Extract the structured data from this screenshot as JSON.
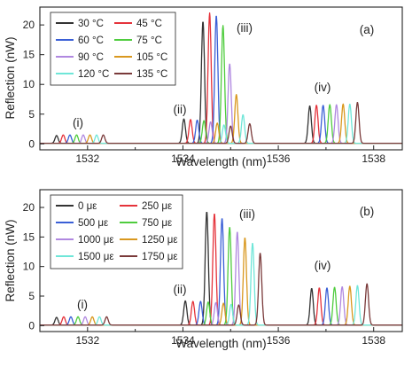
{
  "chart_data": [
    {
      "type": "line",
      "panel_label": "(a)",
      "xlabel": "Wavelength (nm)",
      "ylabel": "Reflection (nW)",
      "xlim": [
        1531,
        1538.6
      ],
      "ylim": [
        -1,
        23
      ],
      "xticks": [
        1532,
        1534,
        1536,
        1538
      ],
      "yticks": [
        0,
        5,
        10,
        15,
        20
      ],
      "grid": false,
      "legend_position": "top-left",
      "annotations": [
        "(i)",
        "(ii)",
        "(iii)",
        "(iv)"
      ],
      "series": [
        {
          "name": "30 °C",
          "color": "#333333",
          "peaks": [
            [
              1531.35,
              1.3
            ],
            [
              1534.02,
              4.1
            ],
            [
              1534.42,
              20.5
            ],
            [
              1536.66,
              6.3
            ]
          ]
        },
        {
          "name": "45 °C",
          "color": "#e5333b",
          "peaks": [
            [
              1531.49,
              1.4
            ],
            [
              1534.16,
              4.0
            ],
            [
              1534.56,
              21.9
            ],
            [
              1536.8,
              6.4
            ]
          ]
        },
        {
          "name": "60 °C",
          "color": "#3a5fd6",
          "peaks": [
            [
              1531.63,
              1.4
            ],
            [
              1534.3,
              3.9
            ],
            [
              1534.7,
              21.5
            ],
            [
              1536.94,
              6.4
            ]
          ]
        },
        {
          "name": "75 °C",
          "color": "#4fcc3e",
          "peaks": [
            [
              1531.77,
              1.4
            ],
            [
              1534.44,
              3.8
            ],
            [
              1534.84,
              19.8
            ],
            [
              1537.08,
              6.5
            ]
          ]
        },
        {
          "name": "90 °C",
          "color": "#b088e0",
          "peaks": [
            [
              1531.91,
              1.4
            ],
            [
              1534.58,
              3.6
            ],
            [
              1534.98,
              13.4
            ],
            [
              1537.22,
              6.5
            ]
          ]
        },
        {
          "name": "105 °C",
          "color": "#d9981f",
          "peaks": [
            [
              1532.05,
              1.4
            ],
            [
              1534.72,
              3.4
            ],
            [
              1535.12,
              8.2
            ],
            [
              1537.36,
              6.6
            ]
          ]
        },
        {
          "name": "120 °C",
          "color": "#6fe6d8",
          "peaks": [
            [
              1532.19,
              1.4
            ],
            [
              1534.86,
              3.1
            ],
            [
              1535.26,
              4.8
            ],
            [
              1537.5,
              6.6
            ]
          ]
        },
        {
          "name": "135 °C",
          "color": "#7a3a3a",
          "peaks": [
            [
              1532.33,
              1.4
            ],
            [
              1535.0,
              2.9
            ],
            [
              1535.4,
              3.3
            ],
            [
              1537.66,
              6.9
            ]
          ]
        }
      ]
    },
    {
      "type": "line",
      "panel_label": "(b)",
      "xlabel": "Wavelength (nm)",
      "ylabel": "Reflection (nW)",
      "xlim": [
        1531,
        1538.6
      ],
      "ylim": [
        -1,
        23
      ],
      "xticks": [
        1532,
        1534,
        1536,
        1538
      ],
      "yticks": [
        0,
        5,
        10,
        15,
        20
      ],
      "grid": false,
      "legend_position": "top-left",
      "annotations": [
        "(i)",
        "(ii)",
        "(iii)",
        "(iv)"
      ],
      "series": [
        {
          "name": "0 με",
          "color": "#333333",
          "peaks": [
            [
              1531.35,
              1.3
            ],
            [
              1534.05,
              4.1
            ],
            [
              1534.5,
              19.2
            ],
            [
              1536.7,
              6.2
            ]
          ]
        },
        {
          "name": "250 με",
          "color": "#e5333b",
          "peaks": [
            [
              1531.5,
              1.4
            ],
            [
              1534.21,
              4.0
            ],
            [
              1534.66,
              18.9
            ],
            [
              1536.86,
              6.3
            ]
          ]
        },
        {
          "name": "500 με",
          "color": "#3a5fd6",
          "peaks": [
            [
              1531.65,
              1.4
            ],
            [
              1534.37,
              4.0
            ],
            [
              1534.82,
              18.1
            ],
            [
              1537.02,
              6.3
            ]
          ]
        },
        {
          "name": "750 με",
          "color": "#4fcc3e",
          "peaks": [
            [
              1531.8,
              1.4
            ],
            [
              1534.53,
              3.9
            ],
            [
              1534.98,
              16.6
            ],
            [
              1537.18,
              6.4
            ]
          ]
        },
        {
          "name": "1000 με",
          "color": "#b088e0",
          "peaks": [
            [
              1531.95,
              1.4
            ],
            [
              1534.69,
              3.8
            ],
            [
              1535.14,
              15.8
            ],
            [
              1537.34,
              6.5
            ]
          ]
        },
        {
          "name": "1250 με",
          "color": "#d9981f",
          "peaks": [
            [
              1532.1,
              1.4
            ],
            [
              1534.85,
              3.7
            ],
            [
              1535.3,
              14.8
            ],
            [
              1537.5,
              6.6
            ]
          ]
        },
        {
          "name": "1500 με",
          "color": "#6fe6d8",
          "peaks": [
            [
              1532.25,
              1.4
            ],
            [
              1535.01,
              3.5
            ],
            [
              1535.46,
              13.9
            ],
            [
              1537.66,
              6.7
            ]
          ]
        },
        {
          "name": "1750 με",
          "color": "#7a3a3a",
          "peaks": [
            [
              1532.4,
              1.4
            ],
            [
              1535.17,
              3.4
            ],
            [
              1535.62,
              12.2
            ],
            [
              1537.86,
              7.0
            ]
          ]
        }
      ]
    }
  ]
}
